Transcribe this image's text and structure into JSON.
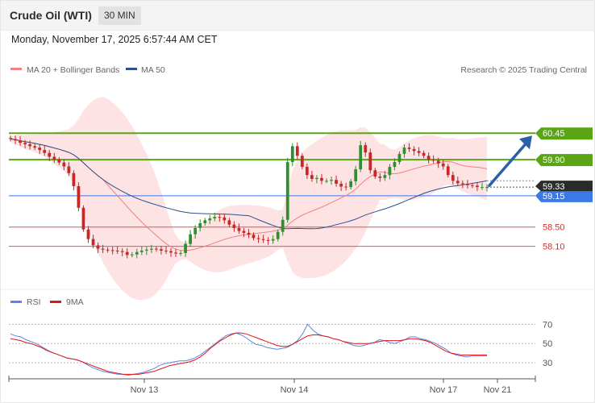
{
  "header": {
    "title": "Crude Oil (WTI)",
    "timeframe_label": "30 MIN",
    "datetime": "Monday, November 17, 2025 6:57:44 AM CET"
  },
  "price_panel": {
    "legend": [
      {
        "label": "MA 20 + Bollinger Bands",
        "color": "#f08080"
      },
      {
        "label": "MA 50",
        "color": "#2d4f8e"
      }
    ],
    "copyright": "Research © 2025 Trading Central"
  },
  "chart_data": [
    {
      "type": "candlestick",
      "ylim": [
        57.44,
        61.04
      ],
      "x_ticks": [
        "Nov 13",
        "Nov 14",
        "Nov 17",
        "Nov 21"
      ],
      "current_price": "59.33",
      "levels": [
        {
          "value": "60.45",
          "kind": "resistance",
          "color": "#5aa516",
          "style": "tag"
        },
        {
          "value": "59.90",
          "kind": "resistance",
          "color": "#5aa516",
          "style": "tag"
        },
        {
          "value": "59.15",
          "kind": "pivot",
          "color": "#3a79e6",
          "style": "tag"
        },
        {
          "value": "58.50",
          "kind": "support",
          "color": "#e05555",
          "style": "text"
        },
        {
          "value": "58.10",
          "kind": "support",
          "color": "#e05555",
          "style": "text"
        }
      ],
      "close_series": [
        60.33,
        60.3,
        60.25,
        60.22,
        60.18,
        60.15,
        60.1,
        60.04,
        59.96,
        59.9,
        59.84,
        59.76,
        59.62,
        59.35,
        58.9,
        58.45,
        58.25,
        58.12,
        58.05,
        58.03,
        58.02,
        58.01,
        58.0,
        57.98,
        57.92,
        57.93,
        57.98,
        58.01,
        58.03,
        58.05,
        58.04,
        58.01,
        58.0,
        57.97,
        57.95,
        57.96,
        58.15,
        58.35,
        58.48,
        58.58,
        58.64,
        58.68,
        58.71,
        58.7,
        58.64,
        58.55,
        58.48,
        58.42,
        58.38,
        58.34,
        58.27,
        58.25,
        58.23,
        58.22,
        58.25,
        58.4,
        58.65,
        59.85,
        60.18,
        59.98,
        59.75,
        59.58,
        59.5,
        59.52,
        59.46,
        59.46,
        59.48,
        59.4,
        59.34,
        59.33,
        59.45,
        59.7,
        60.2,
        60.05,
        59.68,
        59.55,
        59.52,
        59.58,
        59.75,
        59.85,
        60.02,
        60.15,
        60.12,
        60.08,
        60.04,
        59.98,
        59.9,
        59.88,
        59.82,
        59.76,
        59.58,
        59.46,
        59.41,
        59.4,
        59.37,
        59.36,
        59.33,
        59.33,
        59.33
      ]
    },
    {
      "type": "line",
      "title": "",
      "series": [
        {
          "name": "RSI",
          "color": "#5b86e5"
        },
        {
          "name": "9MA",
          "color": "#e01515"
        }
      ],
      "ylim": [
        15,
        82
      ],
      "y_ticks": [
        30,
        50,
        70
      ],
      "rsi": [
        60,
        58,
        57,
        54,
        52,
        50,
        47,
        44,
        41,
        39,
        37,
        35,
        34,
        33,
        31,
        28,
        25,
        23,
        21,
        20,
        19,
        18,
        18,
        17,
        18,
        19,
        20,
        22,
        24,
        27,
        29,
        30,
        31,
        32,
        32,
        33,
        35,
        38,
        42,
        46,
        50,
        54,
        58,
        60,
        61,
        59,
        56,
        52,
        49,
        48,
        46,
        45,
        44,
        45,
        46,
        49,
        53,
        60,
        70,
        64,
        60,
        58,
        57,
        55,
        54,
        52,
        50,
        48,
        47,
        48,
        50,
        51,
        54,
        53,
        51,
        50,
        52,
        54,
        57,
        57,
        55,
        54,
        52,
        50,
        47,
        44,
        40,
        38,
        37,
        36,
        37,
        37,
        37,
        37
      ],
      "ma9": [
        55,
        54,
        53,
        51,
        50,
        48,
        46,
        43,
        41,
        39,
        37,
        35,
        34,
        33,
        31,
        29,
        27,
        25,
        23,
        21,
        20,
        19,
        18,
        18,
        18,
        18,
        19,
        20,
        21,
        23,
        25,
        27,
        28,
        29,
        30,
        31,
        33,
        36,
        40,
        45,
        49,
        53,
        56,
        59,
        61,
        61,
        60,
        58,
        56,
        54,
        52,
        50,
        48,
        47,
        47,
        49,
        52,
        55,
        58,
        59,
        59,
        58,
        57,
        55,
        54,
        52,
        51,
        50,
        50,
        50,
        50,
        51,
        52,
        53,
        53,
        53,
        53,
        54,
        55,
        55,
        54,
        53,
        51,
        48,
        45,
        42,
        40,
        39,
        38,
        38,
        38,
        38,
        38,
        38
      ]
    }
  ]
}
